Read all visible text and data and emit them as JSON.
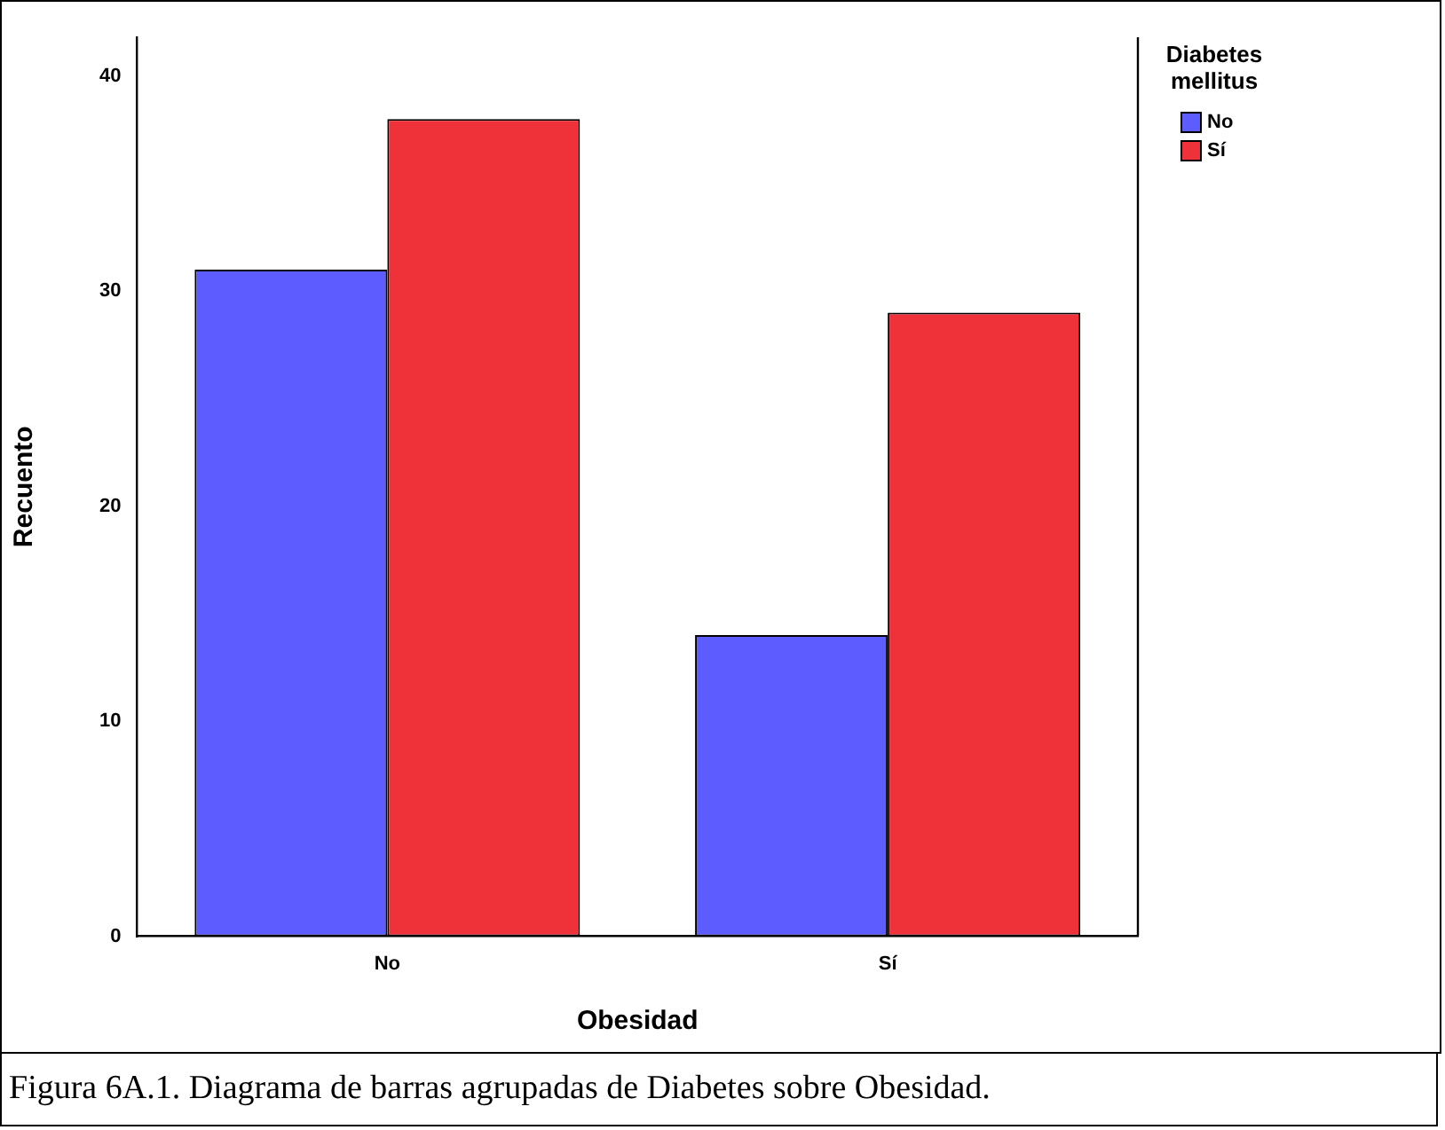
{
  "chart_data": {
    "type": "bar",
    "xlabel": "Obesidad",
    "ylabel": "Recuento",
    "legend_title": "Diabetes mellitus",
    "categories": [
      "No",
      "Sí"
    ],
    "series": [
      {
        "name": "No",
        "color": "#5c5cff",
        "values": [
          31,
          14
        ]
      },
      {
        "name": "Sí",
        "color": "#ef313a",
        "values": [
          38,
          29
        ]
      }
    ],
    "ylim": [
      0,
      41.8
    ],
    "yticks": [
      0,
      10,
      20,
      30,
      40
    ],
    "grid": false,
    "legend": "top right",
    "annotations": [
      "Figura 6A.1. Diagrama de barras agrupadas de Diabetes sobre Obesidad."
    ]
  }
}
